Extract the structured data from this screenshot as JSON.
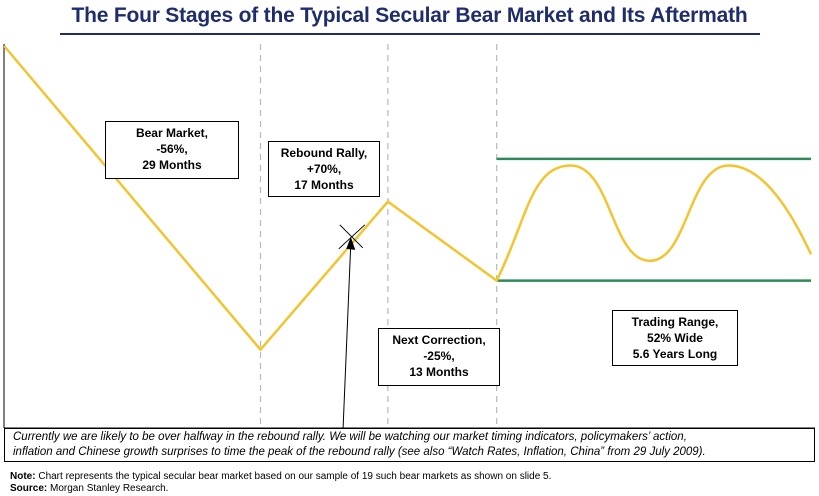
{
  "title": "The Four Stages of the Typical Secular Bear Market and Its Aftermath",
  "chart_data": {
    "type": "line",
    "title": "The Four Stages of the Typical Secular Bear Market and Its Aftermath",
    "xlabel": "",
    "ylabel": "",
    "ylim": [
      0,
      100
    ],
    "xlim": [
      0,
      100
    ],
    "series": [
      {
        "name": "Typical secular bear market path",
        "color": "#f4c430",
        "x": [
          0,
          31.7,
          47.5,
          61.0
        ],
        "y": [
          100,
          8,
          53,
          29
        ]
      }
    ],
    "oscillation": {
      "name": "Trading range oscillation",
      "x_start": 61.0,
      "x_end": 100,
      "y_start": 29,
      "peaks": [
        {
          "x": 70.2,
          "y": 64
        },
        {
          "x": 89.8,
          "y": 64
        }
      ],
      "troughs": [
        {
          "x": 80.0,
          "y": 35
        }
      ],
      "y_end": 37
    },
    "range_lines": [
      {
        "name": "Trading range top",
        "y": 66,
        "x_start": 61.0,
        "x_end": 100,
        "color": "#2e8b57"
      },
      {
        "name": "Trading range bottom",
        "y": 29,
        "x_start": 61.0,
        "x_end": 100,
        "color": "#2e8b57"
      }
    ],
    "stage_dividers_x": [
      31.7,
      47.5,
      61.0
    ],
    "current_position_marker": {
      "x": 42.9,
      "y": 42
    },
    "annotations": [
      {
        "key": "bear",
        "lines": [
          "Bear Market,",
          "-56%,",
          "29 Months"
        ]
      },
      {
        "key": "rebound",
        "lines": [
          "Rebound Rally,",
          "+70%,",
          "17 Months"
        ]
      },
      {
        "key": "correction",
        "lines": [
          "Next Correction,",
          "-25%,",
          "13 Months"
        ]
      },
      {
        "key": "range",
        "lines": [
          "Trading Range,",
          "52% Wide",
          "5.6 Years Long"
        ]
      }
    ]
  },
  "comment": {
    "line1": "Currently we are likely to be over halfway in the rebound rally.  We will be watching our market timing indicators, policymakers’ action,",
    "line2": "inflation and Chinese growth surprises to time the peak of the rebound rally (see also “Watch Rates, Inflation, China” from 29 July 2009)."
  },
  "footer": {
    "note_label": "Note:",
    "note_text": " Chart represents the typical secular bear market based on our sample of 19 such bear markets as shown on slide 5.",
    "source_label": "Source:",
    "source_text": " Morgan Stanley Research."
  }
}
